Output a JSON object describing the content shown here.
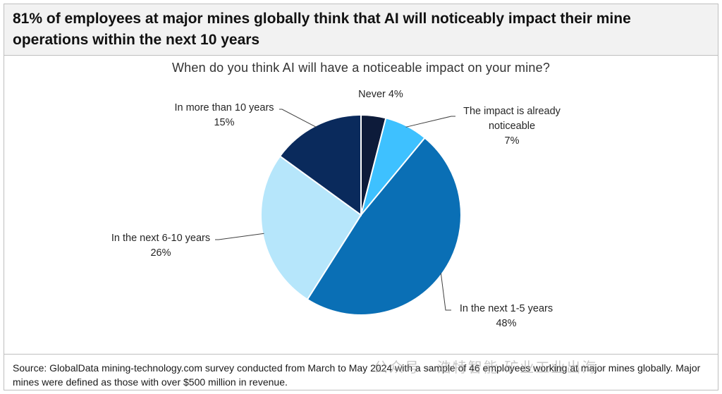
{
  "header": {
    "headline": "81% of employees at major mines globally think that AI will noticeably impact their mine operations within the next 10 years"
  },
  "chart_data": {
    "type": "pie",
    "title": "When do you think  AI will have a noticeable impact on your mine?",
    "slices": [
      {
        "label": "Never",
        "value": 4,
        "value_text": "4%",
        "color": "#0d1b3a"
      },
      {
        "label": "The impact is already noticeable",
        "value": 7,
        "value_text": "7%",
        "color": "#3ec1ff"
      },
      {
        "label": "In the next 1-5 years",
        "value": 48,
        "value_text": "48%",
        "color": "#0a6fb5"
      },
      {
        "label": "In the next 6-10 years",
        "value": 26,
        "value_text": "26%",
        "color": "#b6e6fb"
      },
      {
        "label": "In more than 10 years",
        "value": 15,
        "value_text": "15%",
        "color": "#0a2a5c"
      }
    ],
    "legend": "none"
  },
  "footer": {
    "source": "Source: GlobalData mining-technology.com survey conducted from March to May 2024 with a sample of 46 employees working at major mines globally. Major mines were defined as those with over $500 million in revenue."
  },
  "watermark": {
    "text": "公众号 · 浩特智能 矿业工业出海"
  }
}
